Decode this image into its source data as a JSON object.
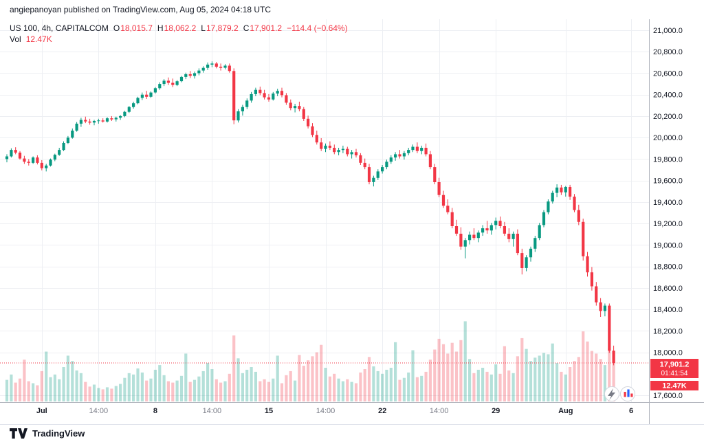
{
  "header": {
    "published_line": "angiepanoyan published on TradingView.com, Aug 05, 2024 04:18 UTC"
  },
  "legend": {
    "title": "US 100, 4h, CAPITALCOM",
    "ohlc": [
      {
        "label": "O",
        "value": "18,015.7"
      },
      {
        "label": "H",
        "value": "18,062.2"
      },
      {
        "label": "L",
        "value": "17,879.2"
      },
      {
        "label": "C",
        "value": "17,901.2"
      }
    ],
    "change": "−114.4 (−0.64%)",
    "vol_label": "Vol",
    "vol_value": "12.47K"
  },
  "badges": {
    "price": "17,901.2",
    "countdown": "01:41:54",
    "volume": "12.47K"
  },
  "price_axis": {
    "labels": [
      {
        "value": 21000,
        "text": "21,000.0"
      },
      {
        "value": 20800,
        "text": "20,800.0"
      },
      {
        "value": 20600,
        "text": "20,600.0"
      },
      {
        "value": 20400,
        "text": "20,400.0"
      },
      {
        "value": 20200,
        "text": "20,200.0"
      },
      {
        "value": 20000,
        "text": "20,000.0"
      },
      {
        "value": 19800,
        "text": "19,800.0"
      },
      {
        "value": 19600,
        "text": "19,600.0"
      },
      {
        "value": 19400,
        "text": "19,400.0"
      },
      {
        "value": 19200,
        "text": "19,200.0"
      },
      {
        "value": 19000,
        "text": "19,000.0"
      },
      {
        "value": 18800,
        "text": "18,800.0"
      },
      {
        "value": 18600,
        "text": "18,600.0"
      },
      {
        "value": 18400,
        "text": "18,400.0"
      },
      {
        "value": 18200,
        "text": "18,200.0"
      },
      {
        "value": 18000,
        "text": "18,000.0"
      },
      {
        "value": 17600,
        "text": "17,600.0"
      }
    ]
  },
  "footer": {
    "brand": "TradingView"
  },
  "colors": {
    "up": "#089981",
    "down": "#F23645",
    "vol_up": "rgba(8,153,129,0.30)",
    "vol_down": "rgba(242,54,69,0.30)",
    "grid": "#EDEFF3",
    "axis_text": "#131722",
    "minor_text": "#787B86",
    "badge_bg": "#F23645",
    "axis_border": "#B2B5BE"
  },
  "chart_data": {
    "type": "candlestick",
    "title": "US 100, 4h, CAPITALCOM",
    "symbol": "US 100",
    "interval": "4h",
    "exchange": "CAPITALCOM",
    "last_bar": {
      "open": 18015.7,
      "high": 18062.2,
      "low": 17879.2,
      "close": 17901.2,
      "change": -114.4,
      "change_pct": -0.64,
      "volume": "12.47K"
    },
    "last_price": 17901.2,
    "y_range": [
      17600,
      21000
    ],
    "grid": true,
    "x_labels": [
      {
        "index": 8,
        "text": "Jul",
        "kind": "major"
      },
      {
        "index": 21,
        "text": "14:00",
        "kind": "minor"
      },
      {
        "index": 34,
        "text": "8",
        "kind": "major"
      },
      {
        "index": 47,
        "text": "14:00",
        "kind": "minor"
      },
      {
        "index": 60,
        "text": "15",
        "kind": "major"
      },
      {
        "index": 73,
        "text": "14:00",
        "kind": "minor"
      },
      {
        "index": 86,
        "text": "22",
        "kind": "major"
      },
      {
        "index": 99,
        "text": "14:00",
        "kind": "minor"
      },
      {
        "index": 112,
        "text": "29",
        "kind": "major"
      },
      {
        "index": 128,
        "text": "Aug",
        "kind": "major"
      },
      {
        "index": 143,
        "text": "6",
        "kind": "major"
      }
    ],
    "columns": [
      "open",
      "high",
      "low",
      "close",
      "volume_k"
    ],
    "candles": [
      [
        19800,
        19845,
        19770,
        19825,
        6.4
      ],
      [
        19825,
        19900,
        19815,
        19885,
        8.0
      ],
      [
        19885,
        19910,
        19845,
        19860,
        5.6
      ],
      [
        19860,
        19875,
        19795,
        19805,
        6.8
      ],
      [
        19805,
        19830,
        19755,
        19775,
        12.4
      ],
      [
        19775,
        19800,
        19740,
        19765,
        6.0
      ],
      [
        19765,
        19825,
        19755,
        19815,
        5.4
      ],
      [
        19815,
        19835,
        19750,
        19765,
        4.8
      ],
      [
        19765,
        19790,
        19695,
        19715,
        9.0
      ],
      [
        19715,
        19755,
        19685,
        19740,
        14.8
      ],
      [
        19740,
        19805,
        19730,
        19795,
        7.2
      ],
      [
        19795,
        19850,
        19780,
        19840,
        8.0
      ],
      [
        19840,
        19905,
        19830,
        19885,
        6.6
      ],
      [
        19885,
        19965,
        19875,
        19950,
        10.2
      ],
      [
        19950,
        20015,
        19940,
        20000,
        13.6
      ],
      [
        20000,
        20085,
        19990,
        20065,
        12.0
      ],
      [
        20065,
        20145,
        20055,
        20130,
        9.2
      ],
      [
        20130,
        20185,
        20100,
        20165,
        8.4
      ],
      [
        20165,
        20195,
        20135,
        20150,
        5.8
      ],
      [
        20150,
        20175,
        20120,
        20140,
        4.4
      ],
      [
        20140,
        20165,
        20115,
        20155,
        5.0
      ],
      [
        20155,
        20175,
        20130,
        20160,
        4.0
      ],
      [
        20160,
        20180,
        20140,
        20150,
        3.6
      ],
      [
        20150,
        20190,
        20140,
        20180,
        4.2
      ],
      [
        20180,
        20200,
        20155,
        20170,
        3.8
      ],
      [
        20170,
        20195,
        20150,
        20185,
        4.6
      ],
      [
        20185,
        20210,
        20165,
        20200,
        5.2
      ],
      [
        20200,
        20250,
        20190,
        20240,
        7.0
      ],
      [
        20240,
        20295,
        20230,
        20285,
        8.4
      ],
      [
        20285,
        20335,
        20270,
        20320,
        8.0
      ],
      [
        20320,
        20380,
        20310,
        20370,
        9.8
      ],
      [
        20370,
        20420,
        20350,
        20400,
        8.6
      ],
      [
        20400,
        20435,
        20360,
        20380,
        6.2
      ],
      [
        20380,
        20430,
        20370,
        20420,
        6.8
      ],
      [
        20420,
        20470,
        20410,
        20460,
        9.4
      ],
      [
        20460,
        20515,
        20445,
        20500,
        10.8
      ],
      [
        20500,
        20545,
        20480,
        20530,
        7.8
      ],
      [
        20530,
        20560,
        20490,
        20510,
        6.0
      ],
      [
        20510,
        20550,
        20470,
        20490,
        5.6
      ],
      [
        20490,
        20535,
        20480,
        20525,
        6.2
      ],
      [
        20525,
        20575,
        20515,
        20565,
        7.6
      ],
      [
        20565,
        20605,
        20545,
        20590,
        14.2
      ],
      [
        20590,
        20620,
        20555,
        20575,
        5.8
      ],
      [
        20575,
        20615,
        20550,
        20600,
        6.4
      ],
      [
        20600,
        20645,
        20580,
        20625,
        7.4
      ],
      [
        20625,
        20665,
        20605,
        20650,
        9.0
      ],
      [
        20650,
        20700,
        20630,
        20680,
        11.4
      ],
      [
        20680,
        20710,
        20655,
        20690,
        9.6
      ],
      [
        20690,
        20705,
        20645,
        20660,
        6.6
      ],
      [
        20660,
        20690,
        20625,
        20650,
        5.6
      ],
      [
        20650,
        20685,
        20635,
        20670,
        6.0
      ],
      [
        20670,
        20690,
        20605,
        20620,
        8.2
      ],
      [
        20620,
        20645,
        20125,
        20160,
        19.6
      ],
      [
        20160,
        20265,
        20140,
        20245,
        12.8
      ],
      [
        20245,
        20305,
        20205,
        20285,
        8.4
      ],
      [
        20285,
        20365,
        20265,
        20345,
        9.4
      ],
      [
        20345,
        20425,
        20325,
        20405,
        10.2
      ],
      [
        20405,
        20465,
        20385,
        20445,
        8.8
      ],
      [
        20445,
        20475,
        20395,
        20415,
        6.0
      ],
      [
        20415,
        20445,
        20355,
        20375,
        6.6
      ],
      [
        20375,
        20405,
        20335,
        20355,
        5.8
      ],
      [
        20355,
        20425,
        20345,
        20410,
        6.8
      ],
      [
        20410,
        20455,
        20385,
        20435,
        13.6
      ],
      [
        20435,
        20465,
        20375,
        20395,
        5.4
      ],
      [
        20395,
        20415,
        20305,
        20325,
        7.8
      ],
      [
        20325,
        20355,
        20255,
        20275,
        9.0
      ],
      [
        20275,
        20315,
        20235,
        20295,
        6.2
      ],
      [
        20295,
        20335,
        20245,
        20265,
        13.8
      ],
      [
        20265,
        20285,
        20155,
        20175,
        10.6
      ],
      [
        20175,
        20205,
        20085,
        20105,
        12.2
      ],
      [
        20105,
        20135,
        20005,
        20025,
        13.4
      ],
      [
        20025,
        20065,
        19935,
        19955,
        14.6
      ],
      [
        19955,
        19995,
        19875,
        19895,
        16.8
      ],
      [
        19895,
        19945,
        19865,
        19925,
        10.0
      ],
      [
        19925,
        19965,
        19885,
        19905,
        7.4
      ],
      [
        19905,
        19935,
        19845,
        19865,
        8.2
      ],
      [
        19865,
        19905,
        19835,
        19885,
        6.8
      ],
      [
        19885,
        19925,
        19855,
        19895,
        6.0
      ],
      [
        19895,
        19915,
        19825,
        19845,
        6.6
      ],
      [
        19845,
        19885,
        19805,
        19865,
        5.8
      ],
      [
        19865,
        19895,
        19815,
        19835,
        5.4
      ],
      [
        19835,
        19855,
        19745,
        19765,
        8.6
      ],
      [
        19765,
        19805,
        19705,
        19725,
        9.6
      ],
      [
        19725,
        19755,
        19565,
        19585,
        13.2
      ],
      [
        19585,
        19645,
        19545,
        19625,
        10.4
      ],
      [
        19625,
        19705,
        19605,
        19685,
        9.0
      ],
      [
        19685,
        19745,
        19665,
        19725,
        8.2
      ],
      [
        19725,
        19795,
        19705,
        19775,
        9.4
      ],
      [
        19775,
        19835,
        19755,
        19815,
        10.0
      ],
      [
        19815,
        19865,
        19785,
        19845,
        17.6
      ],
      [
        19845,
        19885,
        19805,
        19825,
        6.4
      ],
      [
        19825,
        19875,
        19795,
        19855,
        7.0
      ],
      [
        19855,
        19905,
        19835,
        19885,
        8.6
      ],
      [
        19885,
        19935,
        19865,
        19915,
        15.2
      ],
      [
        19915,
        19955,
        19855,
        19875,
        7.2
      ],
      [
        19875,
        19925,
        19845,
        19905,
        7.6
      ],
      [
        19905,
        19945,
        19825,
        19845,
        8.8
      ],
      [
        19845,
        19875,
        19705,
        19725,
        12.4
      ],
      [
        19725,
        19755,
        19565,
        19585,
        15.4
      ],
      [
        19585,
        19625,
        19445,
        19465,
        18.6
      ],
      [
        19465,
        19505,
        19345,
        19365,
        17.0
      ],
      [
        19365,
        19425,
        19285,
        19305,
        14.2
      ],
      [
        19305,
        19345,
        19155,
        19175,
        17.4
      ],
      [
        19175,
        19235,
        19085,
        19105,
        14.8
      ],
      [
        19105,
        19165,
        18955,
        18985,
        18.2
      ],
      [
        18985,
        19065,
        18875,
        19045,
        23.8
      ],
      [
        19045,
        19125,
        19005,
        19095,
        12.6
      ],
      [
        19095,
        19155,
        19045,
        19065,
        8.4
      ],
      [
        19065,
        19135,
        19025,
        19115,
        9.4
      ],
      [
        19115,
        19185,
        19085,
        19155,
        10.0
      ],
      [
        19155,
        19225,
        19105,
        19135,
        8.8
      ],
      [
        19135,
        19205,
        19095,
        19185,
        8.0
      ],
      [
        19185,
        19255,
        19145,
        19225,
        11.0
      ],
      [
        19225,
        19265,
        19155,
        19175,
        8.2
      ],
      [
        19175,
        19215,
        19085,
        19105,
        16.4
      ],
      [
        19105,
        19155,
        19025,
        19055,
        9.2
      ],
      [
        19055,
        19125,
        18985,
        19105,
        8.4
      ],
      [
        19105,
        19145,
        18905,
        18925,
        13.4
      ],
      [
        18925,
        18965,
        18725,
        18785,
        18.8
      ],
      [
        18785,
        18905,
        18755,
        18885,
        15.6
      ],
      [
        18885,
        18985,
        18845,
        18965,
        12.0
      ],
      [
        18965,
        19085,
        18935,
        19065,
        13.0
      ],
      [
        19065,
        19205,
        19045,
        19185,
        13.6
      ],
      [
        19185,
        19325,
        19165,
        19305,
        14.4
      ],
      [
        19305,
        19425,
        19285,
        19405,
        14.0
      ],
      [
        19405,
        19505,
        19385,
        19485,
        17.2
      ],
      [
        19485,
        19565,
        19445,
        19535,
        11.4
      ],
      [
        19535,
        19560,
        19465,
        19490,
        8.8
      ],
      [
        19490,
        19550,
        19450,
        19540,
        8.0
      ],
      [
        19540,
        19560,
        19420,
        19450,
        10.2
      ],
      [
        19450,
        19475,
        19305,
        19325,
        12.0
      ],
      [
        19325,
        19375,
        19185,
        19215,
        13.2
      ],
      [
        19215,
        19245,
        18855,
        18895,
        20.8
      ],
      [
        18895,
        18935,
        18705,
        18745,
        17.8
      ],
      [
        18745,
        18795,
        18575,
        18615,
        15.0
      ],
      [
        18615,
        18655,
        18435,
        18465,
        14.2
      ],
      [
        18465,
        18505,
        18330,
        18385,
        12.6
      ],
      [
        18385,
        18455,
        18335,
        18435,
        10.8
      ],
      [
        18435,
        18455,
        17995,
        18015,
        15.8
      ],
      [
        18015.7,
        18062.2,
        17879.2,
        17901.2,
        12.47
      ]
    ]
  }
}
